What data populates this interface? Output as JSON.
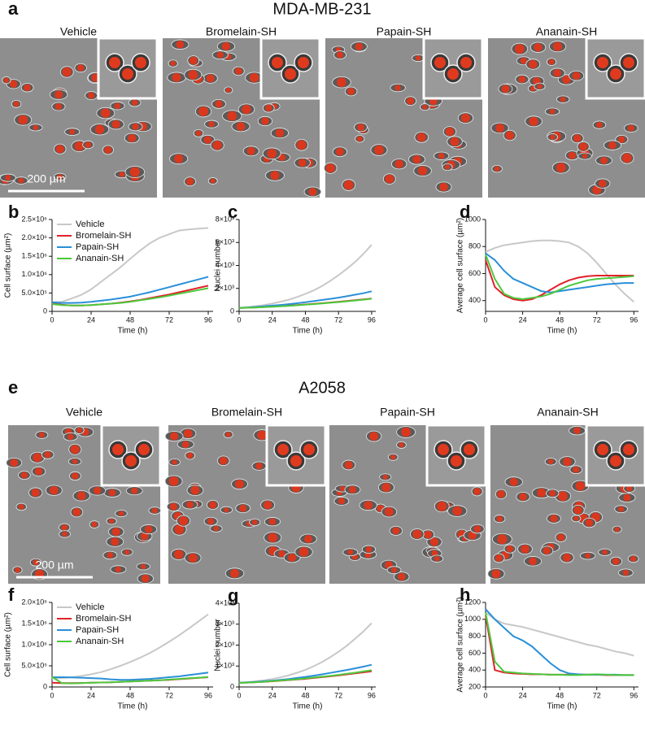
{
  "figure": {
    "sections": [
      {
        "letter": "a",
        "title": "MDA-MB-231",
        "images": [
          "Vehicle",
          "Bromelain-SH",
          "Papain-SH",
          "Ananain-SH"
        ],
        "scale_bar": "200 µm"
      },
      {
        "letter": "e",
        "title": "A2058",
        "images": [
          "Vehicle",
          "Bromelain-SH",
          "Papain-SH",
          "Ananain-SH"
        ],
        "scale_bar": "200 µm"
      }
    ]
  },
  "chart_data": [
    {
      "type": "line",
      "letter": "b",
      "y_label": "Cell surface (µm²)",
      "x_label": "Time (h)",
      "legend": "upper-left",
      "x": [
        0,
        6,
        12,
        18,
        24,
        30,
        36,
        42,
        48,
        54,
        60,
        66,
        72,
        78,
        84,
        90,
        96
      ],
      "xlim": [
        0,
        99
      ],
      "xticks": [
        0,
        24,
        48,
        72,
        96
      ],
      "ylim": [
        0,
        2500000
      ],
      "yticks": [
        0,
        {
          "value": 500000,
          "label": "5.0×10⁵"
        },
        {
          "value": 1000000,
          "label": "1.0×10⁶"
        },
        {
          "value": 1500000,
          "label": "1.5×10⁶"
        },
        {
          "value": 2000000,
          "label": "2.0×10⁶"
        },
        {
          "value": 2500000,
          "label": "2.5×10⁶"
        }
      ],
      "series": [
        {
          "name": "Vehicle",
          "color": "#c8c8c8",
          "values": [
            250000,
            260000,
            350000,
            450000,
            600000,
            800000,
            1000000,
            1200000,
            1430000,
            1650000,
            1850000,
            2000000,
            2100000,
            2200000,
            2230000,
            2250000,
            2270000
          ]
        },
        {
          "name": "Bromelain-SH",
          "color": "#e3202a",
          "values": [
            220000,
            180000,
            160000,
            160000,
            170000,
            190000,
            210000,
            240000,
            270000,
            310000,
            360000,
            410000,
            460000,
            520000,
            580000,
            640000,
            700000
          ]
        },
        {
          "name": "Papain-SH",
          "color": "#2a8fd8",
          "values": [
            250000,
            230000,
            230000,
            240000,
            260000,
            290000,
            320000,
            360000,
            400000,
            460000,
            520000,
            590000,
            660000,
            730000,
            800000,
            870000,
            940000
          ]
        },
        {
          "name": "Ananain-SH",
          "color": "#4cc83c",
          "values": [
            200000,
            170000,
            160000,
            160000,
            170000,
            190000,
            210000,
            230000,
            260000,
            300000,
            340000,
            380000,
            430000,
            480000,
            530000,
            580000,
            630000
          ]
        }
      ]
    },
    {
      "type": "line",
      "letter": "c",
      "y_label": "Nuclei number",
      "x_label": "Time (h)",
      "x": [
        0,
        6,
        12,
        18,
        24,
        30,
        36,
        42,
        48,
        54,
        60,
        66,
        72,
        78,
        84,
        90,
        96
      ],
      "xlim": [
        0,
        99
      ],
      "xticks": [
        0,
        24,
        48,
        72,
        96
      ],
      "ylim": [
        0,
        8000
      ],
      "yticks": [
        0,
        {
          "value": 2000,
          "label": "2×10³"
        },
        {
          "value": 4000,
          "label": "4×10³"
        },
        {
          "value": 6000,
          "label": "6×10³"
        },
        {
          "value": 8000,
          "label": "8×10³"
        }
      ],
      "series": [
        {
          "color": "#c8c8c8",
          "values": [
            300,
            370,
            450,
            550,
            680,
            840,
            1020,
            1250,
            1520,
            1830,
            2200,
            2650,
            3150,
            3700,
            4300,
            5000,
            5800
          ]
        },
        {
          "color": "#e3202a",
          "values": [
            300,
            320,
            350,
            380,
            420,
            460,
            500,
            550,
            600,
            650,
            710,
            770,
            830,
            900,
            970,
            1040,
            1120
          ]
        },
        {
          "color": "#2a8fd8",
          "values": [
            300,
            340,
            390,
            440,
            500,
            560,
            630,
            710,
            800,
            890,
            990,
            1090,
            1200,
            1320,
            1450,
            1580,
            1750
          ]
        },
        {
          "color": "#4cc83c",
          "values": [
            300,
            320,
            340,
            370,
            400,
            440,
            480,
            530,
            580,
            630,
            690,
            750,
            810,
            880,
            950,
            1020,
            1100
          ]
        }
      ]
    },
    {
      "type": "line",
      "letter": "d",
      "y_label": "Average cell surface (µm²)",
      "x_label": "Time (h)",
      "x": [
        0,
        6,
        12,
        18,
        24,
        30,
        36,
        42,
        48,
        54,
        60,
        66,
        72,
        78,
        84,
        90,
        96
      ],
      "xlim": [
        0,
        99
      ],
      "xticks": [
        0,
        24,
        48,
        72,
        96
      ],
      "ylim": [
        320,
        1000
      ],
      "yticks": [
        400,
        600,
        800,
        1000
      ],
      "series": [
        {
          "color": "#c8c8c8",
          "values": [
            760,
            790,
            810,
            820,
            830,
            840,
            845,
            845,
            840,
            830,
            800,
            750,
            680,
            600,
            520,
            450,
            390
          ]
        },
        {
          "color": "#e3202a",
          "values": [
            700,
            500,
            440,
            410,
            400,
            410,
            440,
            480,
            520,
            550,
            570,
            580,
            585,
            585,
            585,
            585,
            585
          ]
        },
        {
          "color": "#2a8fd8",
          "values": [
            750,
            700,
            620,
            560,
            530,
            500,
            470,
            460,
            470,
            480,
            490,
            500,
            510,
            520,
            525,
            530,
            530
          ]
        },
        {
          "color": "#4cc83c",
          "values": [
            740,
            560,
            450,
            420,
            410,
            420,
            430,
            450,
            480,
            510,
            530,
            550,
            560,
            565,
            570,
            575,
            580
          ]
        }
      ]
    },
    {
      "type": "line",
      "letter": "f",
      "y_label": "Cell surface (µm²)",
      "x_label": "Time (h)",
      "legend": "upper-left",
      "x": [
        0,
        6,
        12,
        18,
        24,
        30,
        36,
        42,
        48,
        54,
        60,
        66,
        72,
        78,
        84,
        90,
        96
      ],
      "xlim": [
        0,
        99
      ],
      "xticks": [
        0,
        24,
        48,
        72,
        96
      ],
      "ylim": [
        0,
        2000000
      ],
      "yticks": [
        0,
        {
          "value": 500000,
          "label": "5.0×10⁵"
        },
        {
          "value": 1000000,
          "label": "1.0×10⁶"
        },
        {
          "value": 1500000,
          "label": "1.5×10⁶"
        },
        {
          "value": 2000000,
          "label": "2.0×10⁶"
        }
      ],
      "series": [
        {
          "name": "Vehicle",
          "color": "#c8c8c8",
          "values": [
            200000,
            210000,
            230000,
            260000,
            300000,
            350000,
            420000,
            500000,
            590000,
            690000,
            800000,
            930000,
            1070000,
            1220000,
            1380000,
            1550000,
            1720000
          ]
        },
        {
          "name": "Bromelain-SH",
          "color": "#e3202a",
          "values": [
            100000,
            90000,
            90000,
            95000,
            100000,
            105000,
            110000,
            120000,
            130000,
            140000,
            150000,
            160000,
            170000,
            185000,
            200000,
            215000,
            230000
          ]
        },
        {
          "name": "Papain-SH",
          "color": "#2a8fd8",
          "values": [
            230000,
            230000,
            225000,
            220000,
            210000,
            200000,
            180000,
            170000,
            170000,
            180000,
            190000,
            210000,
            230000,
            250000,
            280000,
            310000,
            340000
          ]
        },
        {
          "name": "Ananain-SH",
          "color": "#4cc83c",
          "values": [
            240000,
            90000,
            85000,
            90000,
            100000,
            105000,
            110000,
            120000,
            130000,
            140000,
            150000,
            160000,
            175000,
            190000,
            205000,
            220000,
            235000
          ]
        }
      ]
    },
    {
      "type": "line",
      "letter": "g",
      "y_label": "Nuclei number",
      "x_label": "Time (h)",
      "x": [
        0,
        6,
        12,
        18,
        24,
        30,
        36,
        42,
        48,
        54,
        60,
        66,
        72,
        78,
        84,
        90,
        96
      ],
      "xlim": [
        0,
        99
      ],
      "xticks": [
        0,
        24,
        48,
        72,
        96
      ],
      "ylim": [
        0,
        4000
      ],
      "yticks": [
        0,
        {
          "value": 1000,
          "label": "1×10³"
        },
        {
          "value": 2000,
          "label": "2×10³"
        },
        {
          "value": 3000,
          "label": "3×10³"
        },
        {
          "value": 4000,
          "label": "4×10³"
        }
      ],
      "series": [
        {
          "color": "#c8c8c8",
          "values": [
            200,
            230,
            270,
            320,
            380,
            460,
            560,
            680,
            820,
            990,
            1190,
            1420,
            1680,
            1970,
            2300,
            2650,
            3050
          ]
        },
        {
          "color": "#e3202a",
          "values": [
            200,
            210,
            230,
            250,
            270,
            300,
            330,
            360,
            390,
            430,
            470,
            510,
            550,
            600,
            650,
            700,
            750
          ]
        },
        {
          "color": "#2a8fd8",
          "values": [
            200,
            220,
            240,
            270,
            300,
            340,
            380,
            430,
            480,
            540,
            600,
            670,
            740,
            810,
            890,
            970,
            1060
          ]
        },
        {
          "color": "#4cc83c",
          "values": [
            200,
            210,
            230,
            250,
            280,
            310,
            340,
            370,
            410,
            450,
            490,
            530,
            580,
            630,
            680,
            740,
            800
          ]
        }
      ]
    },
    {
      "type": "line",
      "letter": "h",
      "y_label": "Average cell surface (µm²)",
      "x_label": "Time (h)",
      "x": [
        0,
        6,
        12,
        18,
        24,
        30,
        36,
        42,
        48,
        54,
        60,
        66,
        72,
        78,
        84,
        90,
        96
      ],
      "xlim": [
        0,
        99
      ],
      "xticks": [
        0,
        24,
        48,
        72,
        96
      ],
      "ylim": [
        200,
        1200
      ],
      "yticks": [
        200,
        400,
        600,
        800,
        1000,
        1200
      ],
      "series": [
        {
          "color": "#c8c8c8",
          "values": [
            1080,
            1000,
            950,
            930,
            910,
            880,
            850,
            820,
            790,
            760,
            730,
            700,
            680,
            650,
            620,
            600,
            570
          ]
        },
        {
          "color": "#e3202a",
          "values": [
            1050,
            400,
            370,
            360,
            355,
            350,
            350,
            345,
            345,
            345,
            345,
            345,
            345,
            340,
            340,
            340,
            340
          ]
        },
        {
          "color": "#2a8fd8",
          "values": [
            1120,
            1000,
            900,
            800,
            750,
            680,
            580,
            480,
            400,
            360,
            350,
            345,
            345,
            345,
            345,
            340,
            340
          ]
        },
        {
          "color": "#4cc83c",
          "values": [
            1080,
            500,
            380,
            370,
            360,
            355,
            350,
            345,
            345,
            340,
            340,
            345,
            350,
            345,
            340,
            340,
            340
          ]
        }
      ]
    }
  ]
}
